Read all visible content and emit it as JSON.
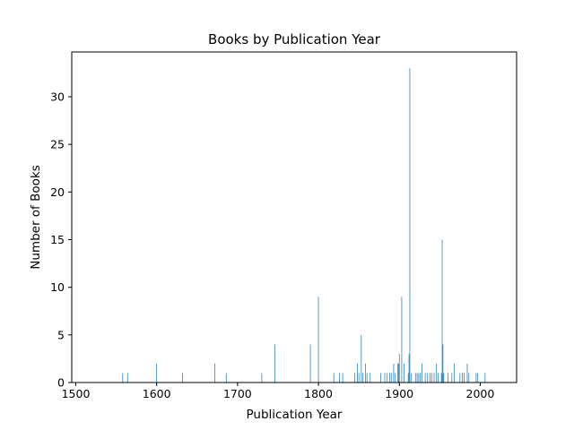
{
  "chart_data": {
    "type": "bar",
    "title": "Books by Publication Year",
    "xlabel": "Publication Year",
    "ylabel": "Number of Books",
    "xlim": [
      1495,
      2045
    ],
    "ylim": [
      0,
      34.7
    ],
    "xticks": [
      1500,
      1600,
      1700,
      1800,
      1900,
      2000
    ],
    "yticks": [
      0,
      5,
      10,
      15,
      20,
      25,
      30
    ],
    "bar_color": "#1f77b4",
    "grid": false,
    "series": [
      {
        "x": [
          1558,
          1564,
          1600,
          1632,
          1672,
          1686,
          1730,
          1746,
          1790,
          1800,
          1819,
          1826,
          1830,
          1845,
          1848,
          1850,
          1853,
          1855,
          1858,
          1860,
          1864,
          1877,
          1882,
          1885,
          1888,
          1890,
          1893,
          1895,
          1898,
          1899,
          1900,
          1903,
          1906,
          1911,
          1912,
          1913,
          1915,
          1920,
          1922,
          1924,
          1926,
          1928,
          1932,
          1935,
          1938,
          1940,
          1943,
          1946,
          1948,
          1952,
          1953,
          1954,
          1955,
          1960,
          1965,
          1968,
          1975,
          1978,
          1980,
          1984,
          1986,
          1995,
          1997,
          2006
        ],
        "values": [
          1,
          1,
          2,
          1,
          2,
          1,
          1,
          4,
          4,
          9,
          1,
          1,
          1,
          1,
          2,
          1,
          5,
          1,
          2,
          1,
          1,
          1,
          1,
          1,
          1,
          1,
          2,
          1,
          2,
          2,
          3,
          9,
          2,
          1,
          3,
          33,
          1,
          1,
          1,
          1,
          1,
          2,
          1,
          1,
          1,
          1,
          1,
          2,
          1,
          1,
          15,
          4,
          1,
          1,
          1,
          2,
          1,
          1,
          1,
          2,
          1,
          1,
          1,
          1
        ]
      }
    ]
  }
}
